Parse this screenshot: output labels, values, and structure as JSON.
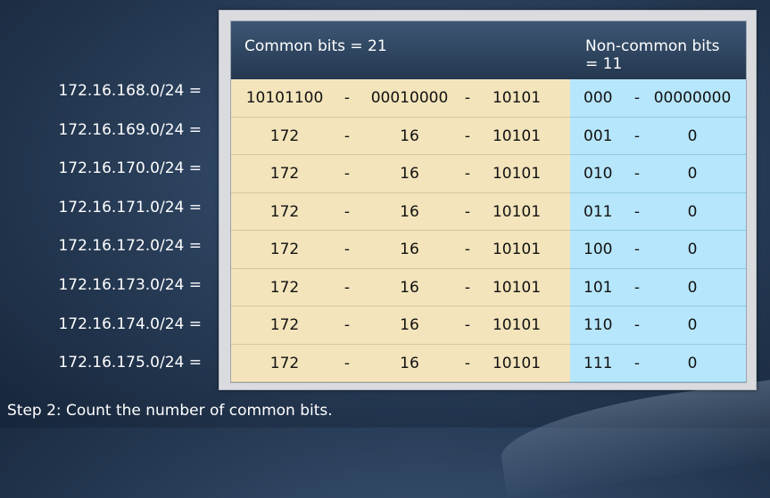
{
  "header": {
    "common": "Common bits = 21",
    "noncommon": "Non-common bits = 11"
  },
  "rows": [
    {
      "network": "172.16.168.0/24 =",
      "o1": "10101100",
      "d1": "-",
      "o2": "00010000",
      "d2": "-",
      "o3": "10101",
      "n1": "000",
      "n2": "-",
      "n3": "00000000"
    },
    {
      "network": "172.16.169.0/24 =",
      "o1": "172",
      "d1": "-",
      "o2": "16",
      "d2": "-",
      "o3": "10101",
      "n1": "001",
      "n2": "-",
      "n3": "0"
    },
    {
      "network": "172.16.170.0/24 =",
      "o1": "172",
      "d1": "-",
      "o2": "16",
      "d2": "-",
      "o3": "10101",
      "n1": "010",
      "n2": "-",
      "n3": "0"
    },
    {
      "network": "172.16.171.0/24 =",
      "o1": "172",
      "d1": "-",
      "o2": "16",
      "d2": "-",
      "o3": "10101",
      "n1": "011",
      "n2": "-",
      "n3": "0"
    },
    {
      "network": "172.16.172.0/24 =",
      "o1": "172",
      "d1": "-",
      "o2": "16",
      "d2": "-",
      "o3": "10101",
      "n1": "100",
      "n2": "-",
      "n3": "0"
    },
    {
      "network": "172.16.173.0/24 =",
      "o1": "172",
      "d1": "-",
      "o2": "16",
      "d2": "-",
      "o3": "10101",
      "n1": "101",
      "n2": "-",
      "n3": "0"
    },
    {
      "network": "172.16.174.0/24 =",
      "o1": "172",
      "d1": "-",
      "o2": "16",
      "d2": "-",
      "o3": "10101",
      "n1": "110",
      "n2": "-",
      "n3": "0"
    },
    {
      "network": "172.16.175.0/24 =",
      "o1": "172",
      "d1": "-",
      "o2": "16",
      "d2": "-",
      "o3": "10101",
      "n1": "111",
      "n2": "-",
      "n3": "0"
    }
  ],
  "caption": "Step 2: Count the number of common bits.",
  "colors": {
    "common_bg": "#f3e4bb",
    "noncommon_bg": "#b6e6fb",
    "header_bg": "#2f4763"
  }
}
